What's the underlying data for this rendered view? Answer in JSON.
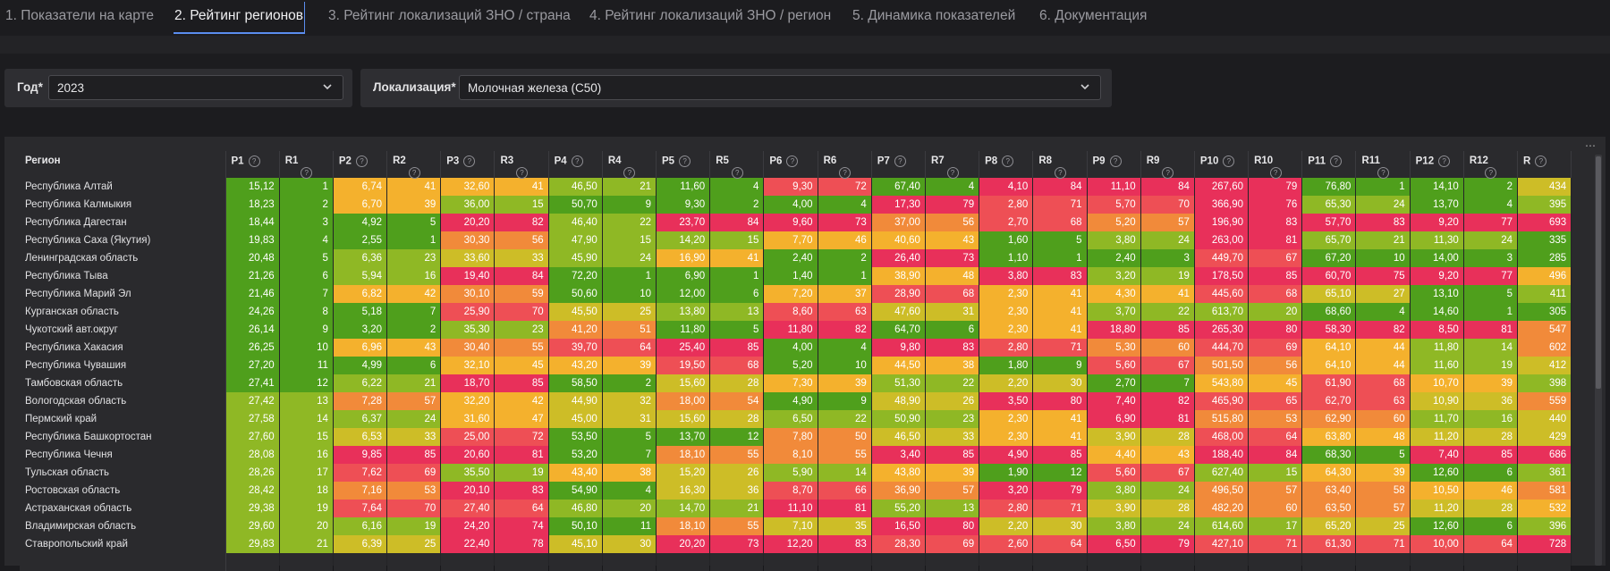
{
  "tabs": [
    {
      "label": "1. Показатели на карте",
      "active": false
    },
    {
      "label": "2. Рейтинг регионов",
      "active": true
    },
    {
      "label": "3. Рейтинг локализаций ЗНО / страна",
      "active": false
    },
    {
      "label": "4. Рейтинг локализаций ЗНО / регион",
      "active": false
    },
    {
      "label": "5. Динамика показателей",
      "active": false
    },
    {
      "label": "6. Документация",
      "active": false
    }
  ],
  "filters": {
    "year": {
      "label": "Год*",
      "value": "2023"
    },
    "localization": {
      "label": "Локализация*",
      "value": "Молочная железа (C50)"
    }
  },
  "table": {
    "region_header": "Регион",
    "columns": [
      "P1",
      "R1",
      "P2",
      "R2",
      "P3",
      "R3",
      "P4",
      "R4",
      "P5",
      "R5",
      "P6",
      "R6",
      "P7",
      "R7",
      "P8",
      "R8",
      "P9",
      "R9",
      "P10",
      "R10",
      "P11",
      "R11",
      "P12",
      "R12",
      "R"
    ],
    "rows": [
      {
        "region": "Республика Алтай",
        "cells": [
          "15,12",
          "1",
          "6,74",
          "41",
          "32,60",
          "41",
          "46,50",
          "21",
          "11,60",
          "4",
          "9,30",
          "72",
          "67,40",
          "4",
          "4,10",
          "84",
          "11,10",
          "84",
          "267,60",
          "79",
          "76,80",
          "1",
          "14,10",
          "2",
          "434"
        ]
      },
      {
        "region": "Республика Калмыкия",
        "cells": [
          "18,23",
          "2",
          "6,70",
          "39",
          "36,00",
          "15",
          "50,70",
          "9",
          "9,30",
          "2",
          "4,00",
          "4",
          "17,30",
          "79",
          "2,80",
          "71",
          "5,70",
          "70",
          "366,90",
          "76",
          "65,30",
          "24",
          "13,70",
          "4",
          "395"
        ]
      },
      {
        "region": "Республика Дагестан",
        "cells": [
          "18,44",
          "3",
          "4,92",
          "5",
          "20,20",
          "82",
          "46,40",
          "22",
          "23,70",
          "84",
          "9,60",
          "73",
          "37,00",
          "56",
          "2,70",
          "68",
          "5,20",
          "57",
          "196,90",
          "83",
          "57,70",
          "83",
          "9,20",
          "77",
          "693"
        ]
      },
      {
        "region": "Республика Саха (Якутия)",
        "cells": [
          "19,83",
          "4",
          "2,55",
          "1",
          "30,30",
          "56",
          "47,90",
          "15",
          "14,20",
          "15",
          "7,70",
          "46",
          "40,60",
          "43",
          "1,60",
          "5",
          "3,80",
          "24",
          "263,00",
          "81",
          "65,70",
          "21",
          "11,30",
          "24",
          "335"
        ]
      },
      {
        "region": "Ленинградская область",
        "cells": [
          "20,48",
          "5",
          "6,36",
          "23",
          "33,60",
          "33",
          "45,90",
          "24",
          "16,90",
          "41",
          "2,40",
          "2",
          "26,40",
          "73",
          "1,10",
          "1",
          "2,40",
          "3",
          "449,70",
          "67",
          "67,20",
          "10",
          "14,00",
          "3",
          "285"
        ]
      },
      {
        "region": "Республика Тыва",
        "cells": [
          "21,26",
          "6",
          "5,94",
          "16",
          "19,40",
          "84",
          "72,20",
          "1",
          "6,90",
          "1",
          "1,40",
          "1",
          "38,90",
          "48",
          "3,80",
          "83",
          "3,20",
          "19",
          "178,50",
          "85",
          "60,70",
          "75",
          "9,20",
          "77",
          "496"
        ]
      },
      {
        "region": "Республика Марий Эл",
        "cells": [
          "21,46",
          "7",
          "6,82",
          "42",
          "30,10",
          "59",
          "50,60",
          "10",
          "12,00",
          "6",
          "7,20",
          "37",
          "28,90",
          "68",
          "2,30",
          "41",
          "4,30",
          "41",
          "445,60",
          "68",
          "65,10",
          "27",
          "13,10",
          "5",
          "411"
        ]
      },
      {
        "region": "Курганская область",
        "cells": [
          "24,26",
          "8",
          "5,18",
          "7",
          "25,90",
          "70",
          "45,50",
          "25",
          "13,80",
          "13",
          "8,60",
          "63",
          "47,60",
          "31",
          "2,30",
          "41",
          "3,70",
          "22",
          "613,70",
          "20",
          "68,60",
          "4",
          "14,60",
          "1",
          "305"
        ]
      },
      {
        "region": "Чукотский авт.округ",
        "cells": [
          "26,14",
          "9",
          "3,20",
          "2",
          "35,30",
          "23",
          "41,20",
          "51",
          "11,80",
          "5",
          "11,80",
          "82",
          "64,70",
          "6",
          "2,30",
          "41",
          "18,80",
          "85",
          "265,30",
          "80",
          "58,30",
          "82",
          "8,50",
          "81",
          "547"
        ]
      },
      {
        "region": "Республика Хакасия",
        "cells": [
          "26,25",
          "10",
          "6,96",
          "43",
          "30,40",
          "55",
          "39,70",
          "64",
          "25,40",
          "85",
          "4,00",
          "4",
          "9,80",
          "83",
          "2,80",
          "71",
          "5,30",
          "60",
          "444,70",
          "69",
          "64,10",
          "44",
          "11,80",
          "14",
          "602"
        ]
      },
      {
        "region": "Республика Чувашия",
        "cells": [
          "27,20",
          "11",
          "4,99",
          "6",
          "32,10",
          "45",
          "43,20",
          "39",
          "19,50",
          "68",
          "5,20",
          "10",
          "44,50",
          "38",
          "1,80",
          "9",
          "5,60",
          "67",
          "501,50",
          "56",
          "64,10",
          "44",
          "11,60",
          "19",
          "412"
        ]
      },
      {
        "region": "Тамбовская область",
        "cells": [
          "27,41",
          "12",
          "6,22",
          "21",
          "18,70",
          "85",
          "58,50",
          "2",
          "15,60",
          "28",
          "7,30",
          "39",
          "51,30",
          "22",
          "2,20",
          "30",
          "2,70",
          "7",
          "543,80",
          "45",
          "61,90",
          "68",
          "10,70",
          "39",
          "398"
        ]
      },
      {
        "region": "Вологодская область",
        "cells": [
          "27,42",
          "13",
          "7,28",
          "57",
          "32,20",
          "42",
          "44,90",
          "32",
          "18,00",
          "54",
          "4,90",
          "9",
          "48,90",
          "26",
          "3,50",
          "80",
          "7,40",
          "82",
          "465,90",
          "65",
          "62,70",
          "63",
          "10,90",
          "36",
          "559"
        ]
      },
      {
        "region": "Пермский край",
        "cells": [
          "27,58",
          "14",
          "6,37",
          "24",
          "31,60",
          "47",
          "45,00",
          "31",
          "15,60",
          "28",
          "6,50",
          "22",
          "50,90",
          "23",
          "2,30",
          "41",
          "6,90",
          "81",
          "515,80",
          "53",
          "62,90",
          "60",
          "11,70",
          "16",
          "440"
        ]
      },
      {
        "region": "Республика Башкортостан",
        "cells": [
          "27,60",
          "15",
          "6,53",
          "33",
          "25,00",
          "72",
          "53,50",
          "5",
          "13,70",
          "12",
          "7,80",
          "50",
          "46,50",
          "33",
          "2,30",
          "41",
          "3,90",
          "28",
          "468,00",
          "64",
          "63,80",
          "48",
          "11,20",
          "28",
          "429"
        ]
      },
      {
        "region": "Республика Чечня",
        "cells": [
          "28,08",
          "16",
          "9,85",
          "85",
          "20,60",
          "81",
          "53,20",
          "7",
          "18,10",
          "55",
          "8,10",
          "55",
          "3,40",
          "85",
          "4,90",
          "85",
          "4,40",
          "43",
          "188,40",
          "84",
          "68,30",
          "5",
          "7,40",
          "85",
          "686"
        ]
      },
      {
        "region": "Тульская область",
        "cells": [
          "28,26",
          "17",
          "7,62",
          "69",
          "35,50",
          "19",
          "43,40",
          "38",
          "15,20",
          "26",
          "5,90",
          "14",
          "43,80",
          "39",
          "1,90",
          "12",
          "5,60",
          "67",
          "627,40",
          "15",
          "64,30",
          "39",
          "12,60",
          "6",
          "361"
        ]
      },
      {
        "region": "Ростовская область",
        "cells": [
          "28,42",
          "18",
          "7,16",
          "53",
          "20,10",
          "83",
          "54,90",
          "4",
          "16,30",
          "36",
          "8,70",
          "66",
          "36,90",
          "57",
          "3,20",
          "79",
          "3,80",
          "24",
          "496,50",
          "57",
          "63,40",
          "58",
          "10,50",
          "46",
          "581"
        ]
      },
      {
        "region": "Астраханская область",
        "cells": [
          "29,38",
          "19",
          "7,64",
          "70",
          "27,40",
          "64",
          "46,80",
          "20",
          "14,70",
          "21",
          "11,10",
          "81",
          "55,20",
          "13",
          "2,80",
          "71",
          "3,90",
          "28",
          "482,20",
          "60",
          "63,50",
          "57",
          "11,20",
          "28",
          "532"
        ]
      },
      {
        "region": "Владимирская область",
        "cells": [
          "29,60",
          "20",
          "6,16",
          "19",
          "24,20",
          "74",
          "50,10",
          "11",
          "18,10",
          "55",
          "7,10",
          "35",
          "16,50",
          "80",
          "2,20",
          "30",
          "3,80",
          "24",
          "614,60",
          "17",
          "65,20",
          "25",
          "12,60",
          "6",
          "396"
        ]
      },
      {
        "region": "Ставропольский край",
        "cells": [
          "29,83",
          "21",
          "6,39",
          "25",
          "22,40",
          "78",
          "45,10",
          "30",
          "20,20",
          "73",
          "12,20",
          "83",
          "28,30",
          "69",
          "2,60",
          "64",
          "6,50",
          "79",
          "427,10",
          "71",
          "61,30",
          "71",
          "10,00",
          "64",
          "728"
        ]
      },
      {
        "region": "",
        "cells": [
          "",
          "",
          "",
          "",
          "",
          "",
          "",
          "",
          "",
          "",
          "",
          "",
          "",
          "",
          "",
          "",
          "",
          "",
          "",
          "",
          "",
          "",
          "",
          "",
          ""
        ]
      }
    ]
  },
  "palette": [
    "#4f9f1c",
    "#8fb825",
    "#cdbd27",
    "#f4b12d",
    "#f18a3a",
    "#ee4f55",
    "#e8305a"
  ]
}
